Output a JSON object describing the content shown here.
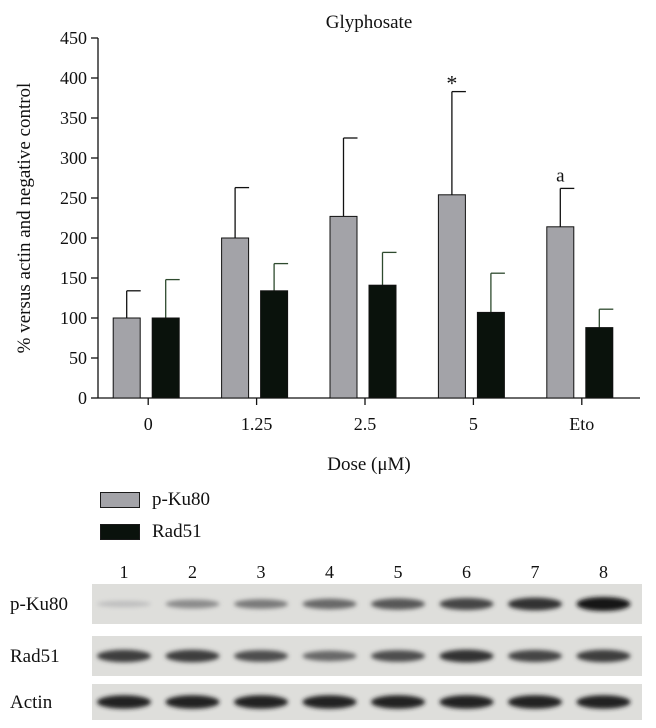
{
  "chart_data": {
    "type": "bar",
    "title": "Glyphosate",
    "xlabel": "Dose (μM)",
    "ylabel": "% versus actin and negative control",
    "ylim": [
      0,
      450
    ],
    "yticks": [
      0,
      50,
      100,
      150,
      200,
      250,
      300,
      350,
      400,
      450
    ],
    "categories": [
      "0",
      "1.25",
      "2.5",
      "5",
      "Eto"
    ],
    "series": [
      {
        "name": "p-Ku80",
        "color": "#a3a3a8",
        "values": [
          100,
          200,
          227,
          254,
          214
        ],
        "error": [
          34,
          63,
          98,
          129,
          48
        ]
      },
      {
        "name": "Rad51",
        "color": "#0a120c",
        "values": [
          100,
          134,
          141,
          107,
          88
        ],
        "error": [
          48,
          34,
          41,
          49,
          23
        ]
      }
    ],
    "annotations": [
      {
        "text": "*",
        "category": "5",
        "series": "p-Ku80"
      },
      {
        "text": "a",
        "category": "Eto",
        "series": "p-Ku80"
      }
    ],
    "legend_position": "bottom-left"
  },
  "blot": {
    "lanes": [
      "1",
      "2",
      "3",
      "4",
      "5",
      "6",
      "7",
      "8"
    ],
    "rows": [
      {
        "label": "p-Ku80",
        "intensity": [
          0.05,
          0.35,
          0.45,
          0.55,
          0.65,
          0.75,
          0.85,
          1.0
        ]
      },
      {
        "label": "Rad51",
        "intensity": [
          0.8,
          0.8,
          0.7,
          0.55,
          0.7,
          0.85,
          0.75,
          0.8
        ]
      },
      {
        "label": "Actin",
        "intensity": [
          0.95,
          0.95,
          0.95,
          0.95,
          0.95,
          0.95,
          0.95,
          0.95
        ]
      }
    ]
  }
}
